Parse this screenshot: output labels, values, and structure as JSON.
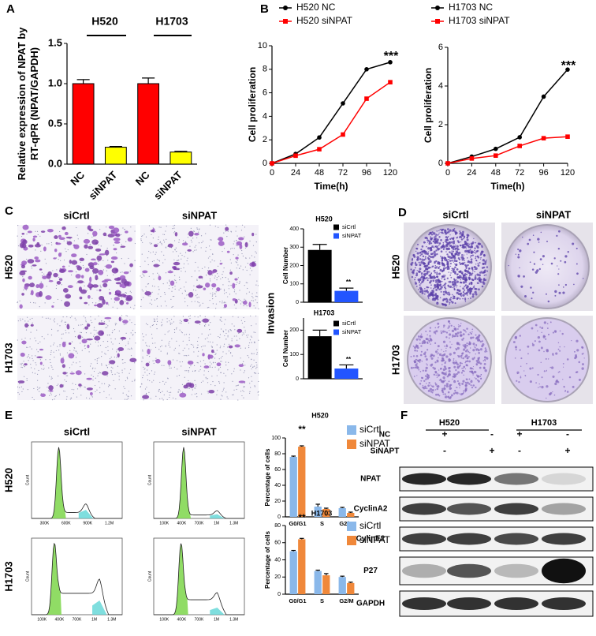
{
  "panel_labels": [
    "A",
    "B",
    "C",
    "D",
    "E",
    "F"
  ],
  "chart_data": [
    {
      "type": "bar",
      "ylabel": "Relative expression of NPAT by RT-qPR (NPAT/GAPDH)",
      "groups": [
        "H520",
        "H1703"
      ],
      "categories": [
        "NC",
        "siNPAT",
        "NC",
        "siNPAT"
      ],
      "values": [
        1.0,
        0.21,
        1.0,
        0.15
      ],
      "errors": [
        0.05,
        0.01,
        0.07,
        0.01
      ],
      "colors": [
        "#ff0000",
        "#ffff00",
        "#ff0000",
        "#ffff00"
      ],
      "ylim": [
        0,
        1.5
      ],
      "yticks": [
        {
          "value": 0,
          "label": "0.0"
        },
        {
          "value": 0.5,
          "label": "0.5"
        },
        {
          "value": 1,
          "label": "1.0"
        },
        {
          "value": 1.5,
          "label": "1.5"
        }
      ]
    },
    {
      "type": "line",
      "xlabel": "Time(h)",
      "ylabel": "Cell proliferation",
      "x": [
        0,
        24,
        48,
        72,
        96,
        120
      ],
      "series": [
        {
          "name": "H520 NC",
          "color": "#000000",
          "marker": "circle",
          "values": [
            0,
            0.8,
            2.2,
            5.1,
            8.0,
            8.6
          ]
        },
        {
          "name": "H520 siNPAT",
          "color": "#ff0000",
          "marker": "square",
          "values": [
            0,
            0.65,
            1.2,
            2.45,
            5.5,
            6.9
          ]
        }
      ],
      "xlim": [
        0,
        120
      ],
      "xticks": [
        0,
        24,
        48,
        72,
        96,
        120
      ],
      "ylim": [
        0,
        10
      ],
      "yticks": [
        0,
        2,
        4,
        6,
        8,
        10
      ],
      "annotation": "***"
    },
    {
      "type": "line",
      "xlabel": "Time(h)",
      "ylabel": "Cell proliferation",
      "x": [
        0,
        24,
        48,
        72,
        96,
        120
      ],
      "series": [
        {
          "name": "H1703 NC",
          "color": "#000000",
          "marker": "circle",
          "values": [
            0,
            0.35,
            0.75,
            1.35,
            3.45,
            4.85
          ]
        },
        {
          "name": "H1703 siNPAT",
          "color": "#ff0000",
          "marker": "square",
          "values": [
            0,
            0.25,
            0.4,
            0.9,
            1.3,
            1.38
          ]
        }
      ],
      "xlim": [
        0,
        120
      ],
      "xticks": [
        0,
        24,
        48,
        72,
        96,
        120
      ],
      "ylim": [
        0,
        6
      ],
      "yticks": [
        0,
        2,
        4,
        6
      ],
      "annotation": "***"
    },
    {
      "type": "bar",
      "title": "H520",
      "ylabel": "Cell Number",
      "categories": [
        null
      ],
      "series": [
        {
          "name": "siCrtl",
          "color": "#000000",
          "values": [
            285
          ],
          "errors": [
            30
          ]
        },
        {
          "name": "siNPAT",
          "color": "#2255ff",
          "values": [
            62
          ],
          "errors": [
            15
          ]
        }
      ],
      "ylim": [
        0,
        400
      ],
      "yticks": [
        0,
        100,
        200,
        300,
        400
      ],
      "annotation": "**"
    },
    {
      "type": "bar",
      "title": "H1703",
      "ylabel": "Cell Number",
      "categories": [
        null
      ],
      "series": [
        {
          "name": "siCrtl",
          "color": "#000000",
          "values": [
            175
          ],
          "errors": [
            25
          ]
        },
        {
          "name": "siNPAT",
          "color": "#2255ff",
          "values": [
            42
          ],
          "errors": [
            15
          ]
        }
      ],
      "ylim": [
        0,
        250
      ],
      "yticks": [
        0,
        100,
        200
      ],
      "annotation": "**"
    },
    {
      "type": "bar",
      "title": "H520",
      "ylabel": "Percentage of cells",
      "categories": [
        "G0/G1",
        "S",
        "G2/M"
      ],
      "series": [
        {
          "name": "siCrtl",
          "color": "#8ab8ea",
          "values": [
            76,
            13,
            11
          ],
          "errors": [
            1,
            3,
            1
          ]
        },
        {
          "name": "siNPAT",
          "color": "#f0883a",
          "values": [
            89,
            10,
            5
          ],
          "errors": [
            1,
            1,
            1
          ]
        }
      ],
      "ylim": [
        0,
        100
      ],
      "yticks": [
        0,
        20,
        40,
        60,
        80,
        100
      ],
      "annotation": "**"
    },
    {
      "type": "bar",
      "title": "H1703",
      "ylabel": "Percentage of cells",
      "categories": [
        "G0/G1",
        "S",
        "G2/M"
      ],
      "series": [
        {
          "name": "siCrtl",
          "color": "#8ab8ea",
          "values": [
            50,
            27,
            20
          ],
          "errors": [
            1,
            1,
            1
          ]
        },
        {
          "name": "siNPAT",
          "color": "#f0883a",
          "values": [
            64,
            22,
            13
          ],
          "errors": [
            1,
            2,
            1
          ]
        }
      ],
      "ylim": [
        0,
        80
      ],
      "yticks": [
        0,
        20,
        40,
        60,
        80
      ],
      "annotation": "**"
    }
  ],
  "panel_c": {
    "columns": [
      "siCrtl",
      "siNPAT"
    ],
    "rows": [
      "H520",
      "H1703"
    ],
    "side_label": "Invasion"
  },
  "panel_d": {
    "columns": [
      "siCrtl",
      "siNPAT"
    ],
    "rows": [
      "H520",
      "H1703"
    ]
  },
  "panel_e": {
    "columns": [
      "siCrtl",
      "siNPAT"
    ],
    "rows": [
      "H520",
      "H1703"
    ],
    "count_label": "Count",
    "flow_ticks": [
      [
        "300K",
        "600K",
        "900K",
        "1.2M"
      ],
      [
        "100K",
        "400K",
        "700K",
        "1M",
        "1.3M"
      ],
      [
        "100K",
        "400K",
        "700K",
        "1M",
        "1.3M"
      ],
      [
        "100K",
        "400K",
        "700K",
        "1M",
        "1.3M"
      ]
    ]
  },
  "panel_f": {
    "groups": [
      "H520",
      "H1703"
    ],
    "conditions": [
      {
        "name": "NC",
        "marks": [
          "+",
          "-",
          "+",
          "-"
        ]
      },
      {
        "name": "SiNAPT",
        "marks": [
          "-",
          "+",
          "-",
          "+"
        ]
      }
    ],
    "bands": [
      "NPAT",
      "CyclinA2",
      "CylinE2",
      "P27",
      "GAPDH"
    ]
  }
}
